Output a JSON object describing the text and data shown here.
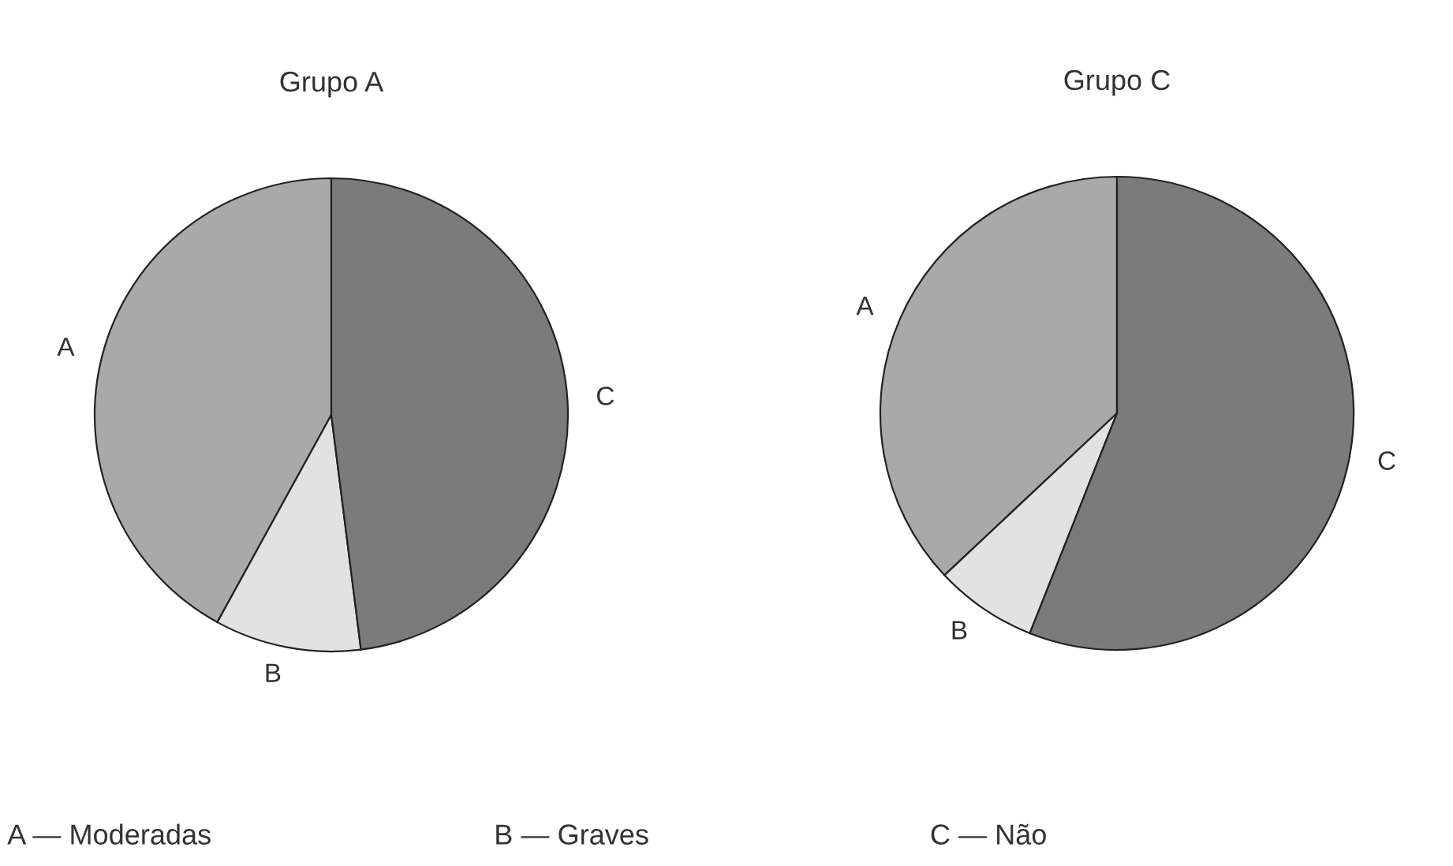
{
  "chart_data": [
    {
      "type": "pie",
      "title": "Grupo A",
      "categories": [
        "A",
        "B",
        "C"
      ],
      "values": [
        42,
        10,
        48
      ],
      "colors": [
        "#a9a9a9",
        "#e2e2e2",
        "#7b7b7b"
      ],
      "annotations": [
        "A — Moderadas",
        "B — Graves",
        "C — Não"
      ]
    },
    {
      "type": "pie",
      "title": "Grupo C",
      "categories": [
        "A",
        "B",
        "C"
      ],
      "values": [
        37,
        7,
        56
      ],
      "colors": [
        "#a9a9a9",
        "#e2e2e2",
        "#7b7b7b"
      ]
    }
  ]
}
